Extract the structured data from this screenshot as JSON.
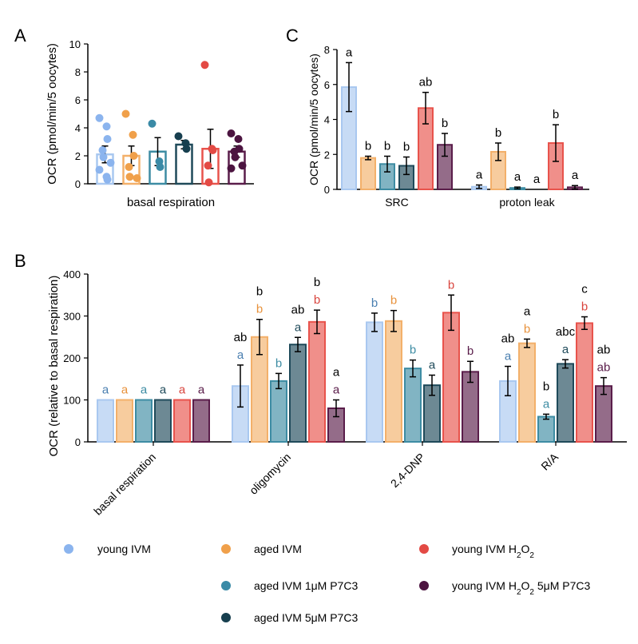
{
  "colors": {
    "young_ivm": "#a9c8f0",
    "aged_ivm": "#f3b06a",
    "aged_1um": "#3d8ca3",
    "aged_5um": "#1f4a5a",
    "young_h2o2": "#e8534c",
    "young_h2o2_5um": "#5a1d4a",
    "young_ivm_dot": "#8bb4ee",
    "aged_ivm_dot": "#f0a04a",
    "aged_1um_dot": "#3a8aa6",
    "aged_5um_dot": "#173f4f",
    "young_h2o2_dot": "#e34a44",
    "young_h2o2_5um_dot": "#4c1440"
  },
  "legend": {
    "young_ivm": "young IVM",
    "aged_ivm": "aged IVM",
    "young_h2o2_pre": "young IVM H",
    "young_h2o2_sub": "2",
    "young_h2o2_mid": "O",
    "aged_1um": "aged IVM 1μM P7C3",
    "young_h2o2_5um_pre": "young IVM H",
    "young_h2o2_5um_mid": "O",
    "young_h2o2_5um_post": " 5μM P7C3",
    "aged_5um": "aged IVM 5μM P7C3"
  },
  "chart_data": [
    {
      "panel": "A",
      "type": "bar",
      "title": "",
      "ylabel": "OCR (pmol/min/5 oocytes)",
      "xlabel": "basal respiration",
      "ylim": [
        0,
        10
      ],
      "yticks": [
        "0",
        "2",
        "4",
        "6",
        "8",
        "10"
      ],
      "series": [
        {
          "name": "young IVM",
          "value": 2.1,
          "err": 0.6,
          "points": [
            4.7,
            4.1,
            3.2,
            2.4,
            1.9,
            1.5,
            1.0,
            0.5,
            0.3
          ]
        },
        {
          "name": "aged IVM",
          "value": 2.0,
          "err": 0.7,
          "points": [
            5.0,
            3.5,
            2.0,
            1.2,
            0.5,
            0.4
          ]
        },
        {
          "name": "aged IVM 1μM P7C3",
          "value": 2.3,
          "err": 1.0,
          "points": [
            4.3,
            1.6,
            1.2
          ]
        },
        {
          "name": "aged IVM 5μM P7C3",
          "value": 2.8,
          "err": 0.3,
          "points": [
            3.4,
            2.9,
            2.5
          ]
        },
        {
          "name": "young IVM H2O2",
          "value": 2.5,
          "err": 1.4,
          "points": [
            8.5,
            2.5,
            2.4,
            1.3,
            0.1
          ]
        },
        {
          "name": "young IVM H2O2 5μM P7C3",
          "value": 2.3,
          "err": 0.4,
          "points": [
            3.6,
            3.2,
            2.5,
            2.3,
            1.9,
            1.3,
            1.1
          ]
        }
      ]
    },
    {
      "panel": "C",
      "type": "bar",
      "ylabel": "OCR (pmol/min/5 oocytes)",
      "ylim": [
        0,
        8
      ],
      "yticks": [
        "0",
        "2",
        "4",
        "6",
        "8"
      ],
      "categories": [
        "SRC",
        "proton leak"
      ],
      "series": [
        {
          "name": "young IVM",
          "values": [
            5.85,
            0.15
          ],
          "errs": [
            1.4,
            0.1
          ],
          "letters": [
            "a",
            "a"
          ]
        },
        {
          "name": "aged IVM",
          "values": [
            1.8,
            2.15
          ],
          "errs": [
            0.1,
            0.5
          ],
          "letters": [
            "b",
            "b"
          ]
        },
        {
          "name": "aged IVM 1μM P7C3",
          "values": [
            1.45,
            0.08
          ],
          "errs": [
            0.45,
            0.05
          ],
          "letters": [
            "b",
            "a"
          ]
        },
        {
          "name": "aged IVM 5μM P7C3",
          "values": [
            1.35,
            0.0
          ],
          "errs": [
            0.5,
            0.0
          ],
          "letters": [
            "b",
            "a"
          ]
        },
        {
          "name": "young IVM H2O2",
          "values": [
            4.65,
            2.65
          ],
          "errs": [
            0.9,
            1.05
          ],
          "letters": [
            "ab",
            "b"
          ]
        },
        {
          "name": "young IVM H2O2 5μM P7C3",
          "values": [
            2.55,
            0.12
          ],
          "errs": [
            0.65,
            0.1
          ],
          "letters": [
            "b",
            "a"
          ]
        }
      ]
    },
    {
      "panel": "B",
      "type": "bar",
      "ylabel": "OCR (relative to basal respiration)",
      "ylim": [
        0,
        400
      ],
      "yticks": [
        "0",
        "100",
        "200",
        "300",
        "400"
      ],
      "categories": [
        "basal respiration",
        "oligomycin",
        "2,4-DNP",
        "R/A"
      ],
      "series": [
        {
          "name": "young IVM",
          "values": [
            100,
            133,
            285,
            145
          ],
          "errs": [
            0,
            50,
            22,
            35
          ],
          "letters": [
            "a",
            "a",
            "b",
            "a"
          ],
          "letters2": [
            "",
            "ab",
            "",
            "ab"
          ]
        },
        {
          "name": "aged IVM",
          "values": [
            100,
            250,
            288,
            235
          ],
          "errs": [
            0,
            42,
            25,
            10
          ],
          "letters": [
            "a",
            "b",
            "b",
            "b"
          ],
          "letters2": [
            "",
            "b",
            "",
            "a"
          ]
        },
        {
          "name": "aged IVM 1μM P7C3",
          "values": [
            100,
            145,
            175,
            60
          ],
          "errs": [
            0,
            18,
            20,
            6
          ],
          "letters": [
            "a",
            "b",
            "b",
            "a"
          ],
          "letters2": [
            "",
            "",
            "",
            "b"
          ]
        },
        {
          "name": "aged IVM 5μM P7C3",
          "values": [
            100,
            232,
            135,
            186
          ],
          "errs": [
            0,
            17,
            24,
            10
          ],
          "letters": [
            "a",
            "a",
            "a",
            "a"
          ],
          "letters2": [
            "",
            "ab",
            "",
            "abc"
          ]
        },
        {
          "name": "young IVM H2O2",
          "values": [
            100,
            286,
            308,
            283
          ],
          "errs": [
            0,
            28,
            42,
            15
          ],
          "letters": [
            "a",
            "b",
            "b",
            "b"
          ],
          "letters2": [
            "",
            "b",
            "",
            "c"
          ]
        },
        {
          "name": "young IVM H2O2 5μM P7C3",
          "values": [
            100,
            80,
            167,
            133
          ],
          "errs": [
            0,
            20,
            25,
            20
          ],
          "letters": [
            "a",
            "a",
            "b",
            "ab"
          ],
          "letters2": [
            "",
            "a",
            "",
            "ab"
          ]
        }
      ]
    }
  ],
  "panel_labels": {
    "A": "A",
    "B": "B",
    "C": "C"
  }
}
